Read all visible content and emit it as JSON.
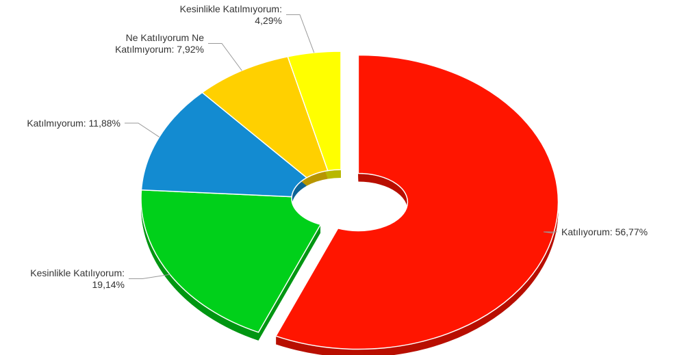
{
  "chart_data": {
    "type": "pie",
    "title": "",
    "categories": [
      "Katılıyorum",
      "Kesinlikle Katılıyorum",
      "Katılmıyorum",
      "Ne Katılıyorum Ne Katılmıyorum",
      "Kesinlikle Katılmıyorum"
    ],
    "values": [
      56.77,
      19.14,
      11.88,
      7.92,
      4.29
    ],
    "colors": [
      "#ff1500",
      "#00d01a",
      "#138bd1",
      "#ffd000",
      "#ffff00"
    ],
    "labels": [
      {
        "lines": [
          "Katılıyorum: 56,77%"
        ]
      },
      {
        "lines": [
          "Kesinlikle Katılıyorum:",
          "19,14%"
        ]
      },
      {
        "lines": [
          "Katılmıyorum: 11,88%"
        ]
      },
      {
        "lines": [
          "Ne Katılıyorum Ne",
          "Katılmıyorum: 7,92%"
        ]
      },
      {
        "lines": [
          "Kesinlikle Katılmıyorum:",
          "4,29%"
        ]
      }
    ],
    "donut": true,
    "three_d": true,
    "exploded": [
      "Katılıyorum"
    ]
  }
}
